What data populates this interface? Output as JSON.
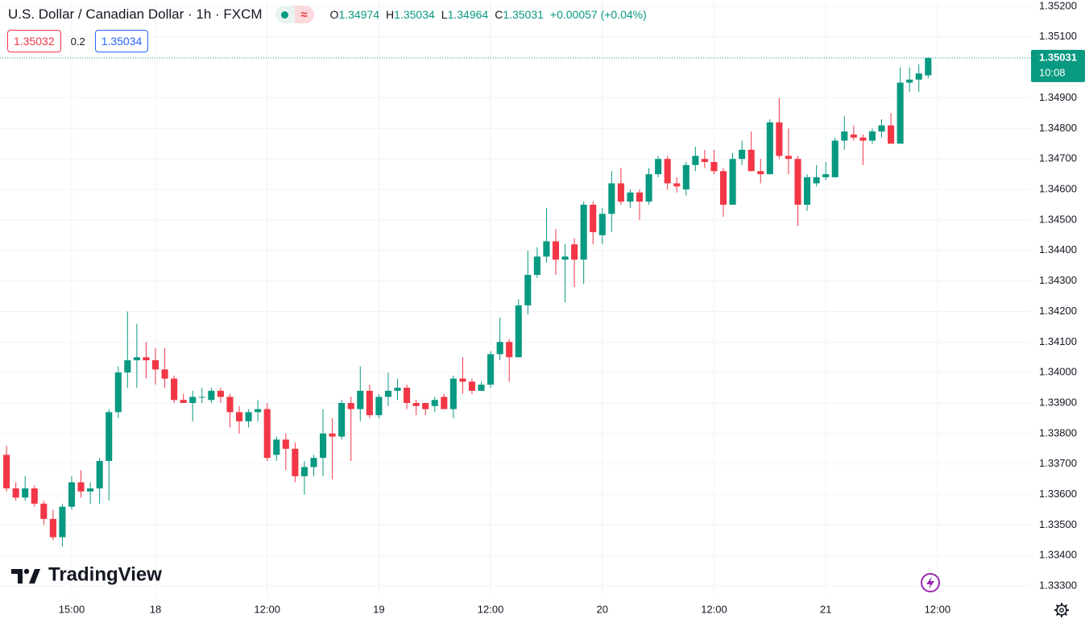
{
  "header": {
    "title": "U.S. Dollar / Canadian Dollar · 1h · FXCM",
    "ohlc": [
      {
        "label": "O",
        "value": "1.34974"
      },
      {
        "label": "H",
        "value": "1.35034"
      },
      {
        "label": "L",
        "value": "1.34964"
      },
      {
        "label": "C",
        "value": "1.35031"
      }
    ],
    "change": "+0.00057 (+0.04%)"
  },
  "quotes": {
    "bid": "1.35032",
    "spread": "0.2",
    "ask": "1.35034"
  },
  "branding": "TradingView",
  "chart_data": {
    "type": "candlestick",
    "up_color": "#089981",
    "down_color": "#f23645",
    "grid": true,
    "last_price_label": "1.35031",
    "countdown": "10:08",
    "xlim": [
      -0.7,
      110.05
    ],
    "xticks": [
      {
        "value": 7,
        "label": "15:00"
      },
      {
        "value": 16,
        "label": "18"
      },
      {
        "value": 28,
        "label": "12:00"
      },
      {
        "value": 40,
        "label": "19"
      },
      {
        "value": 52,
        "label": "12:00"
      },
      {
        "value": 64,
        "label": "20"
      },
      {
        "value": 76,
        "label": "12:00"
      },
      {
        "value": 88,
        "label": "21"
      },
      {
        "value": 100,
        "label": "12:00"
      }
    ],
    "ylim": [
      1.33266,
      1.35221
    ],
    "yticks": [
      {
        "value": 1.352,
        "label": "1.35200"
      },
      {
        "value": 1.351,
        "label": "1.35100"
      },
      {
        "value": 1.349,
        "label": "1.34900"
      },
      {
        "value": 1.348,
        "label": "1.34800"
      },
      {
        "value": 1.347,
        "label": "1.34700"
      },
      {
        "value": 1.346,
        "label": "1.34600"
      },
      {
        "value": 1.345,
        "label": "1.34500"
      },
      {
        "value": 1.344,
        "label": "1.34400"
      },
      {
        "value": 1.343,
        "label": "1.34300"
      },
      {
        "value": 1.342,
        "label": "1.34200"
      },
      {
        "value": 1.341,
        "label": "1.34100"
      },
      {
        "value": 1.34,
        "label": "1.34000"
      },
      {
        "value": 1.339,
        "label": "1.33900"
      },
      {
        "value": 1.338,
        "label": "1.33800"
      },
      {
        "value": 1.337,
        "label": "1.33700"
      },
      {
        "value": 1.336,
        "label": "1.33600"
      },
      {
        "value": 1.335,
        "label": "1.33500"
      },
      {
        "value": 1.334,
        "label": "1.33400"
      },
      {
        "value": 1.333,
        "label": "1.33300"
      }
    ],
    "open": [
      1.3373,
      1.3362,
      1.3359,
      1.3362,
      1.3357,
      1.3352,
      1.3346,
      1.3356,
      1.3364,
      1.3361,
      1.3362,
      1.3371,
      1.3387,
      1.34,
      1.3404,
      1.3405,
      1.3404,
      1.3401,
      1.3398,
      1.3391,
      1.339,
      1.3392,
      1.3391,
      1.3394,
      1.3392,
      1.3387,
      1.3384,
      1.3387,
      1.3388,
      1.3373,
      1.3378,
      1.3375,
      1.3366,
      1.3369,
      1.3372,
      1.338,
      1.3379,
      1.339,
      1.3388,
      1.3394,
      1.3386,
      1.3392,
      1.3394,
      1.3395,
      1.339,
      1.339,
      1.3389,
      1.3392,
      1.3388,
      1.3398,
      1.3397,
      1.3394,
      1.3396,
      1.3406,
      1.341,
      1.3405,
      1.3422,
      1.3432,
      1.3438,
      1.3443,
      1.3437,
      1.3442,
      1.3437,
      1.3455,
      1.3445,
      1.3452,
      1.3462,
      1.3456,
      1.3459,
      1.3456,
      1.3465,
      1.347,
      1.3462,
      1.346,
      1.3468,
      1.347,
      1.3469,
      1.3466,
      1.3455,
      1.347,
      1.3473,
      1.3466,
      1.3465,
      1.3482,
      1.3471,
      1.347,
      1.3455,
      1.3462,
      1.3464,
      1.3464,
      1.3476,
      1.3478,
      1.3477,
      1.3476,
      1.3479,
      1.3481,
      1.3475,
      1.3495,
      1.3496,
      1.34974
    ],
    "high": [
      1.3376,
      1.3364,
      1.3366,
      1.3363,
      1.3358,
      1.3355,
      1.3357,
      1.3366,
      1.3368,
      1.3364,
      1.3372,
      1.3388,
      1.3402,
      1.342,
      1.3416,
      1.341,
      1.3408,
      1.3408,
      1.3399,
      1.3393,
      1.3394,
      1.3395,
      1.3395,
      1.3395,
      1.3393,
      1.3389,
      1.3388,
      1.3391,
      1.339,
      1.3379,
      1.338,
      1.3377,
      1.3371,
      1.3373,
      1.3388,
      1.3385,
      1.3391,
      1.3392,
      1.3402,
      1.3396,
      1.3393,
      1.34,
      1.3398,
      1.3396,
      1.3391,
      1.339,
      1.3392,
      1.3393,
      1.3399,
      1.3405,
      1.3398,
      1.3397,
      1.3407,
      1.3418,
      1.3411,
      1.3424,
      1.344,
      1.3441,
      1.3454,
      1.3447,
      1.3442,
      1.3444,
      1.3456,
      1.3456,
      1.3454,
      1.3466,
      1.3467,
      1.346,
      1.346,
      1.3467,
      1.3471,
      1.3471,
      1.3464,
      1.3469,
      1.3474,
      1.3473,
      1.3473,
      1.3467,
      1.3472,
      1.3476,
      1.3479,
      1.347,
      1.3483,
      1.349,
      1.348,
      1.3471,
      1.3465,
      1.3468,
      1.3469,
      1.3477,
      1.3484,
      1.3481,
      1.3478,
      1.348,
      1.3483,
      1.3485,
      1.35,
      1.35,
      1.3501,
      1.35034
    ],
    "low": [
      1.3361,
      1.3358,
      1.3358,
      1.3356,
      1.335,
      1.3345,
      1.3343,
      1.3355,
      1.3359,
      1.3357,
      1.3357,
      1.3358,
      1.3385,
      1.3395,
      1.3395,
      1.3398,
      1.3396,
      1.3395,
      1.339,
      1.339,
      1.3384,
      1.339,
      1.339,
      1.339,
      1.3382,
      1.338,
      1.3382,
      1.3384,
      1.3371,
      1.3371,
      1.3368,
      1.3364,
      1.336,
      1.3366,
      1.3366,
      1.3365,
      1.3378,
      1.3371,
      1.3384,
      1.3385,
      1.3385,
      1.3389,
      1.3391,
      1.3388,
      1.3386,
      1.3386,
      1.3387,
      1.3388,
      1.3385,
      1.3393,
      1.3393,
      1.3394,
      1.3395,
      1.3404,
      1.3397,
      1.3405,
      1.3419,
      1.3431,
      1.3436,
      1.3432,
      1.3423,
      1.3428,
      1.3429,
      1.3442,
      1.3442,
      1.3446,
      1.3455,
      1.3454,
      1.345,
      1.3455,
      1.3464,
      1.346,
      1.3459,
      1.3458,
      1.3466,
      1.3467,
      1.3465,
      1.3451,
      1.3455,
      1.3468,
      1.3466,
      1.3462,
      1.3465,
      1.347,
      1.3465,
      1.3448,
      1.3453,
      1.3461,
      1.3463,
      1.3464,
      1.3473,
      1.3476,
      1.3468,
      1.3475,
      1.3477,
      1.3475,
      1.3475,
      1.3492,
      1.3492,
      1.34964
    ],
    "close": [
      1.3362,
      1.3359,
      1.3362,
      1.3357,
      1.3352,
      1.3346,
      1.3356,
      1.3364,
      1.3361,
      1.3362,
      1.3371,
      1.3387,
      1.34,
      1.3404,
      1.3405,
      1.3404,
      1.3401,
      1.3398,
      1.3391,
      1.339,
      1.3392,
      1.3392,
      1.3394,
      1.3392,
      1.3387,
      1.3384,
      1.3387,
      1.3388,
      1.3372,
      1.3378,
      1.3375,
      1.3366,
      1.3369,
      1.3372,
      1.338,
      1.3379,
      1.339,
      1.3388,
      1.3394,
      1.3386,
      1.3392,
      1.3394,
      1.3395,
      1.339,
      1.3389,
      1.3388,
      1.3391,
      1.3388,
      1.3398,
      1.3397,
      1.3394,
      1.3396,
      1.3406,
      1.341,
      1.3405,
      1.3422,
      1.3432,
      1.3438,
      1.3443,
      1.3437,
      1.3438,
      1.3437,
      1.3455,
      1.3446,
      1.3452,
      1.3462,
      1.3456,
      1.3459,
      1.3456,
      1.3465,
      1.347,
      1.3462,
      1.3461,
      1.3468,
      1.3471,
      1.3469,
      1.3466,
      1.3455,
      1.347,
      1.3473,
      1.3466,
      1.3465,
      1.3482,
      1.3471,
      1.347,
      1.3455,
      1.3464,
      1.3464,
      1.3465,
      1.3476,
      1.3479,
      1.3477,
      1.3476,
      1.3479,
      1.3481,
      1.3475,
      1.3495,
      1.3496,
      1.3498,
      1.35031
    ]
  }
}
